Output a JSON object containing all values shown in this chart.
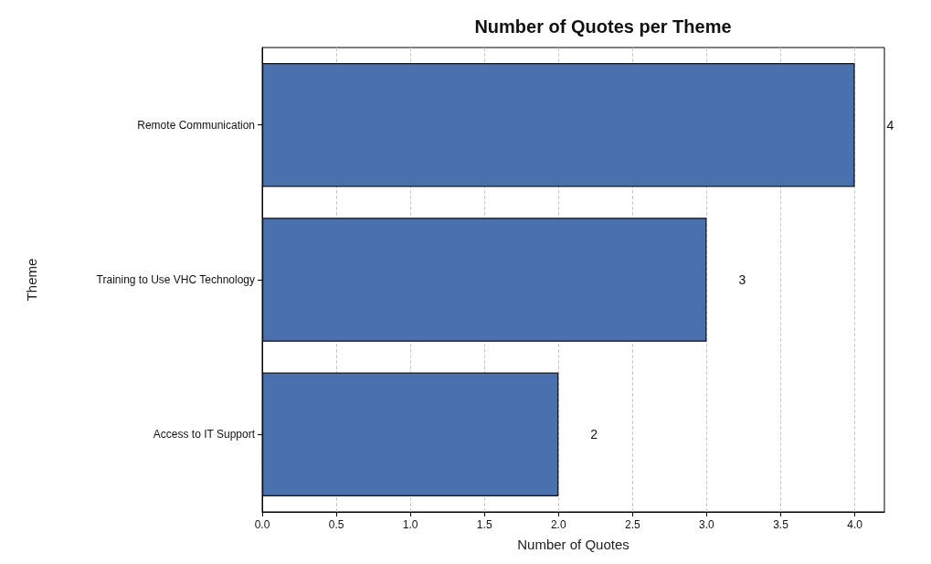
{
  "chart_data": {
    "type": "bar",
    "orientation": "horizontal",
    "title": "Number of Quotes per Theme",
    "xlabel": "Number of Quotes",
    "ylabel": "Theme",
    "categories": [
      "Remote Communication",
      "Training to Use VHC Technology",
      "Access to IT Support"
    ],
    "values": [
      4,
      3,
      2
    ],
    "color": "#4a70ae",
    "data_labels": true,
    "grid": "x",
    "xlim": [
      0,
      4.2
    ],
    "xticks": [
      {
        "value": 0,
        "label": "0.0"
      },
      {
        "value": 0.5,
        "label": "0.5"
      },
      {
        "value": 1,
        "label": "1.0"
      },
      {
        "value": 1.5,
        "label": "1.5"
      },
      {
        "value": 2,
        "label": "2.0"
      },
      {
        "value": 2.5,
        "label": "2.5"
      },
      {
        "value": 3,
        "label": "3.0"
      },
      {
        "value": 3.5,
        "label": "3.5"
      },
      {
        "value": 4,
        "label": "4.0"
      }
    ]
  }
}
